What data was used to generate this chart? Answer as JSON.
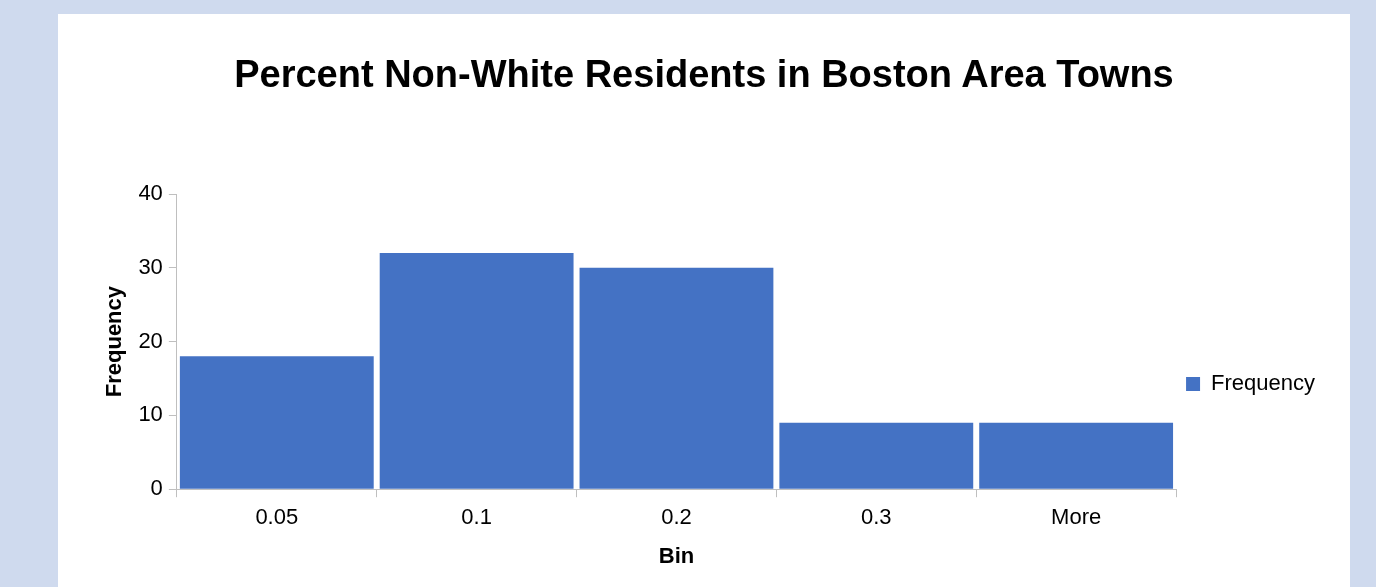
{
  "chart_data": {
    "type": "bar",
    "title": "Percent Non-White Residents in Boston Area Towns",
    "xlabel": "Bin",
    "ylabel": "Frequency",
    "categories": [
      "0.05",
      "0.1",
      "0.2",
      "0.3",
      "More"
    ],
    "series": [
      {
        "name": "Frequency",
        "color": "#4472c4",
        "values": [
          18,
          32,
          30,
          9,
          9
        ]
      }
    ],
    "ylim": [
      0,
      40
    ],
    "yticks": [
      0,
      10,
      20,
      30,
      40
    ],
    "grid": false,
    "legend": "right"
  }
}
